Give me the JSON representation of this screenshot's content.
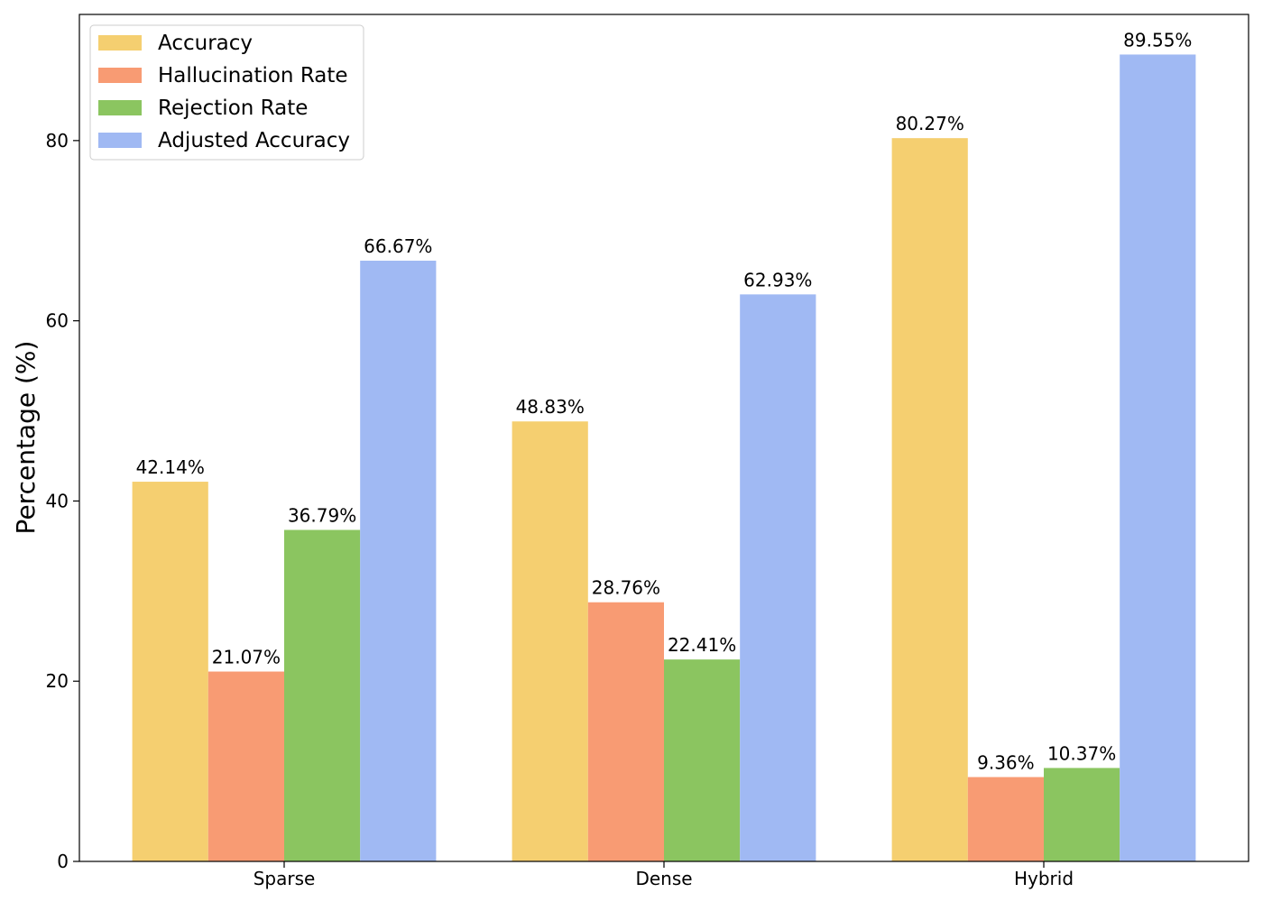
{
  "chart_data": {
    "type": "bar",
    "categories": [
      "Sparse",
      "Dense",
      "Hybrid"
    ],
    "series": [
      {
        "name": "Accuracy",
        "color": "#f5cf70",
        "values": [
          42.14,
          48.83,
          80.27
        ],
        "labels": [
          "42.14%",
          "48.83%",
          "80.27%"
        ]
      },
      {
        "name": "Hallucination Rate",
        "color": "#f89b73",
        "values": [
          21.07,
          28.76,
          9.36
        ],
        "labels": [
          "21.07%",
          "28.76%",
          "9.36%"
        ]
      },
      {
        "name": "Rejection Rate",
        "color": "#8bc560",
        "values": [
          36.79,
          22.41,
          10.37
        ],
        "labels": [
          "36.79%",
          "22.41%",
          "10.37%"
        ]
      },
      {
        "name": "Adjusted Accuracy",
        "color": "#a0b9f3",
        "values": [
          66.67,
          62.93,
          89.55
        ],
        "labels": [
          "66.67%",
          "62.93%",
          "89.55%"
        ]
      }
    ],
    "title": "",
    "xlabel": "",
    "ylabel": "Percentage (%)",
    "ylim": [
      0,
      94
    ],
    "yticks": [
      0,
      20,
      40,
      60,
      80
    ],
    "grid": false,
    "legend_position": "top-left"
  }
}
